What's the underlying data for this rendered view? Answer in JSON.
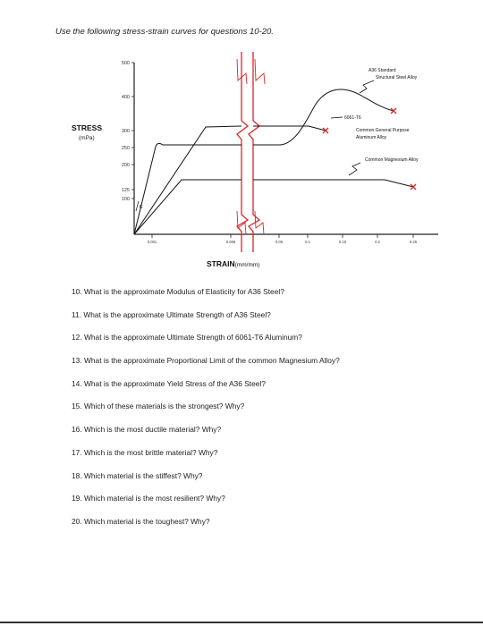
{
  "document": {
    "instruction": "Use the following stress-strain curves for questions 10-20."
  },
  "colors": {
    "curve": "#111111",
    "fracture": "#e02424",
    "axis": "#222222"
  },
  "chart_data": {
    "type": "line",
    "ylabel": "STRESS",
    "ylabel_unit": "(mPa)",
    "xlabel": "STRAIN",
    "xlabel_unit": "(mm/mm)",
    "yticks": [
      "500",
      "400",
      "300",
      "250",
      "200",
      "125",
      "100"
    ],
    "xticks": [
      "0.001",
      "0.005",
      "0.05",
      "0.1",
      "0.15",
      "0.2",
      "0.25"
    ],
    "x_axis_break": "between 0.005 and 0.05",
    "modulus_label": "E",
    "series": [
      {
        "name": "A36 Standard Structural Steel Alloy",
        "label_lines": [
          "A36 Standard",
          "Structural Steel Alloy"
        ],
        "yield_stress": 250,
        "ultimate_stress": 400,
        "fracture_stress": 350,
        "fracture_strain": 0.25
      },
      {
        "name": "6061-T6 Common General Purpose Aluminum Alloy",
        "label_lines": [
          "6061-T6",
          "Common General Purpose",
          "Aluminum Alloy"
        ],
        "ultimate_stress": 290,
        "fracture_stress": 270,
        "fracture_strain": 0.12
      },
      {
        "name": "Common Magnesium Alloy",
        "label_lines": [
          "Common Magnesium Alloy"
        ],
        "yield_stress": 160,
        "fracture_stress": 145,
        "fracture_strain": 0.25
      }
    ]
  },
  "questions": [
    "10. What is the approximate Modulus of Elasticity for A36 Steel?",
    "11. What is the approximate Ultimate Strength of A36 Steel?",
    "12. What is the approximate Ultimate Strength of 6061-T6 Aluminum?",
    "13. What is the approximate Proportional Limit of the common Magnesium Alloy?",
    "14. What is the approximate Yield Stress of the A36 Steel?",
    "15. Which of these materials is the strongest? Why?",
    "16. Which is the most ductile material? Why?",
    "17. Which is the most brittle material? Why?",
    "18. Which material is the stiffest? Why?",
    "19. Which material is the most resilient? Why?",
    "20. Which material is the toughest? Why?"
  ]
}
